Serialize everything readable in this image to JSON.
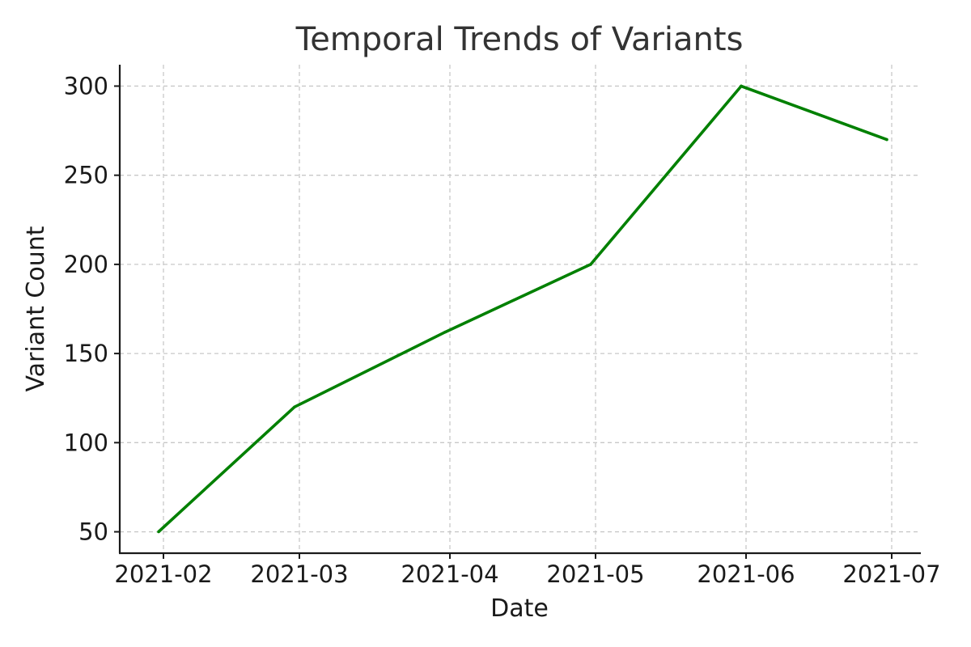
{
  "chart_data": {
    "type": "line",
    "title": "Temporal Trends of Variants",
    "xlabel": "Date",
    "ylabel": "Variant Count",
    "x": [
      "2021-01-31",
      "2021-02-28",
      "2021-03-31",
      "2021-04-30",
      "2021-05-31",
      "2021-06-30"
    ],
    "series": [
      {
        "values": [
          50,
          120,
          162,
          200,
          300,
          270
        ]
      }
    ],
    "xlim": [
      "2021-01-23",
      "2021-07-07"
    ],
    "ylim": [
      38,
      312
    ],
    "x_ticks": [
      "2021-02",
      "2021-03",
      "2021-04",
      "2021-05",
      "2021-06",
      "2021-07"
    ],
    "y_ticks": [
      50,
      100,
      150,
      200,
      250,
      300
    ],
    "grid": true,
    "line_color": "#008000"
  }
}
